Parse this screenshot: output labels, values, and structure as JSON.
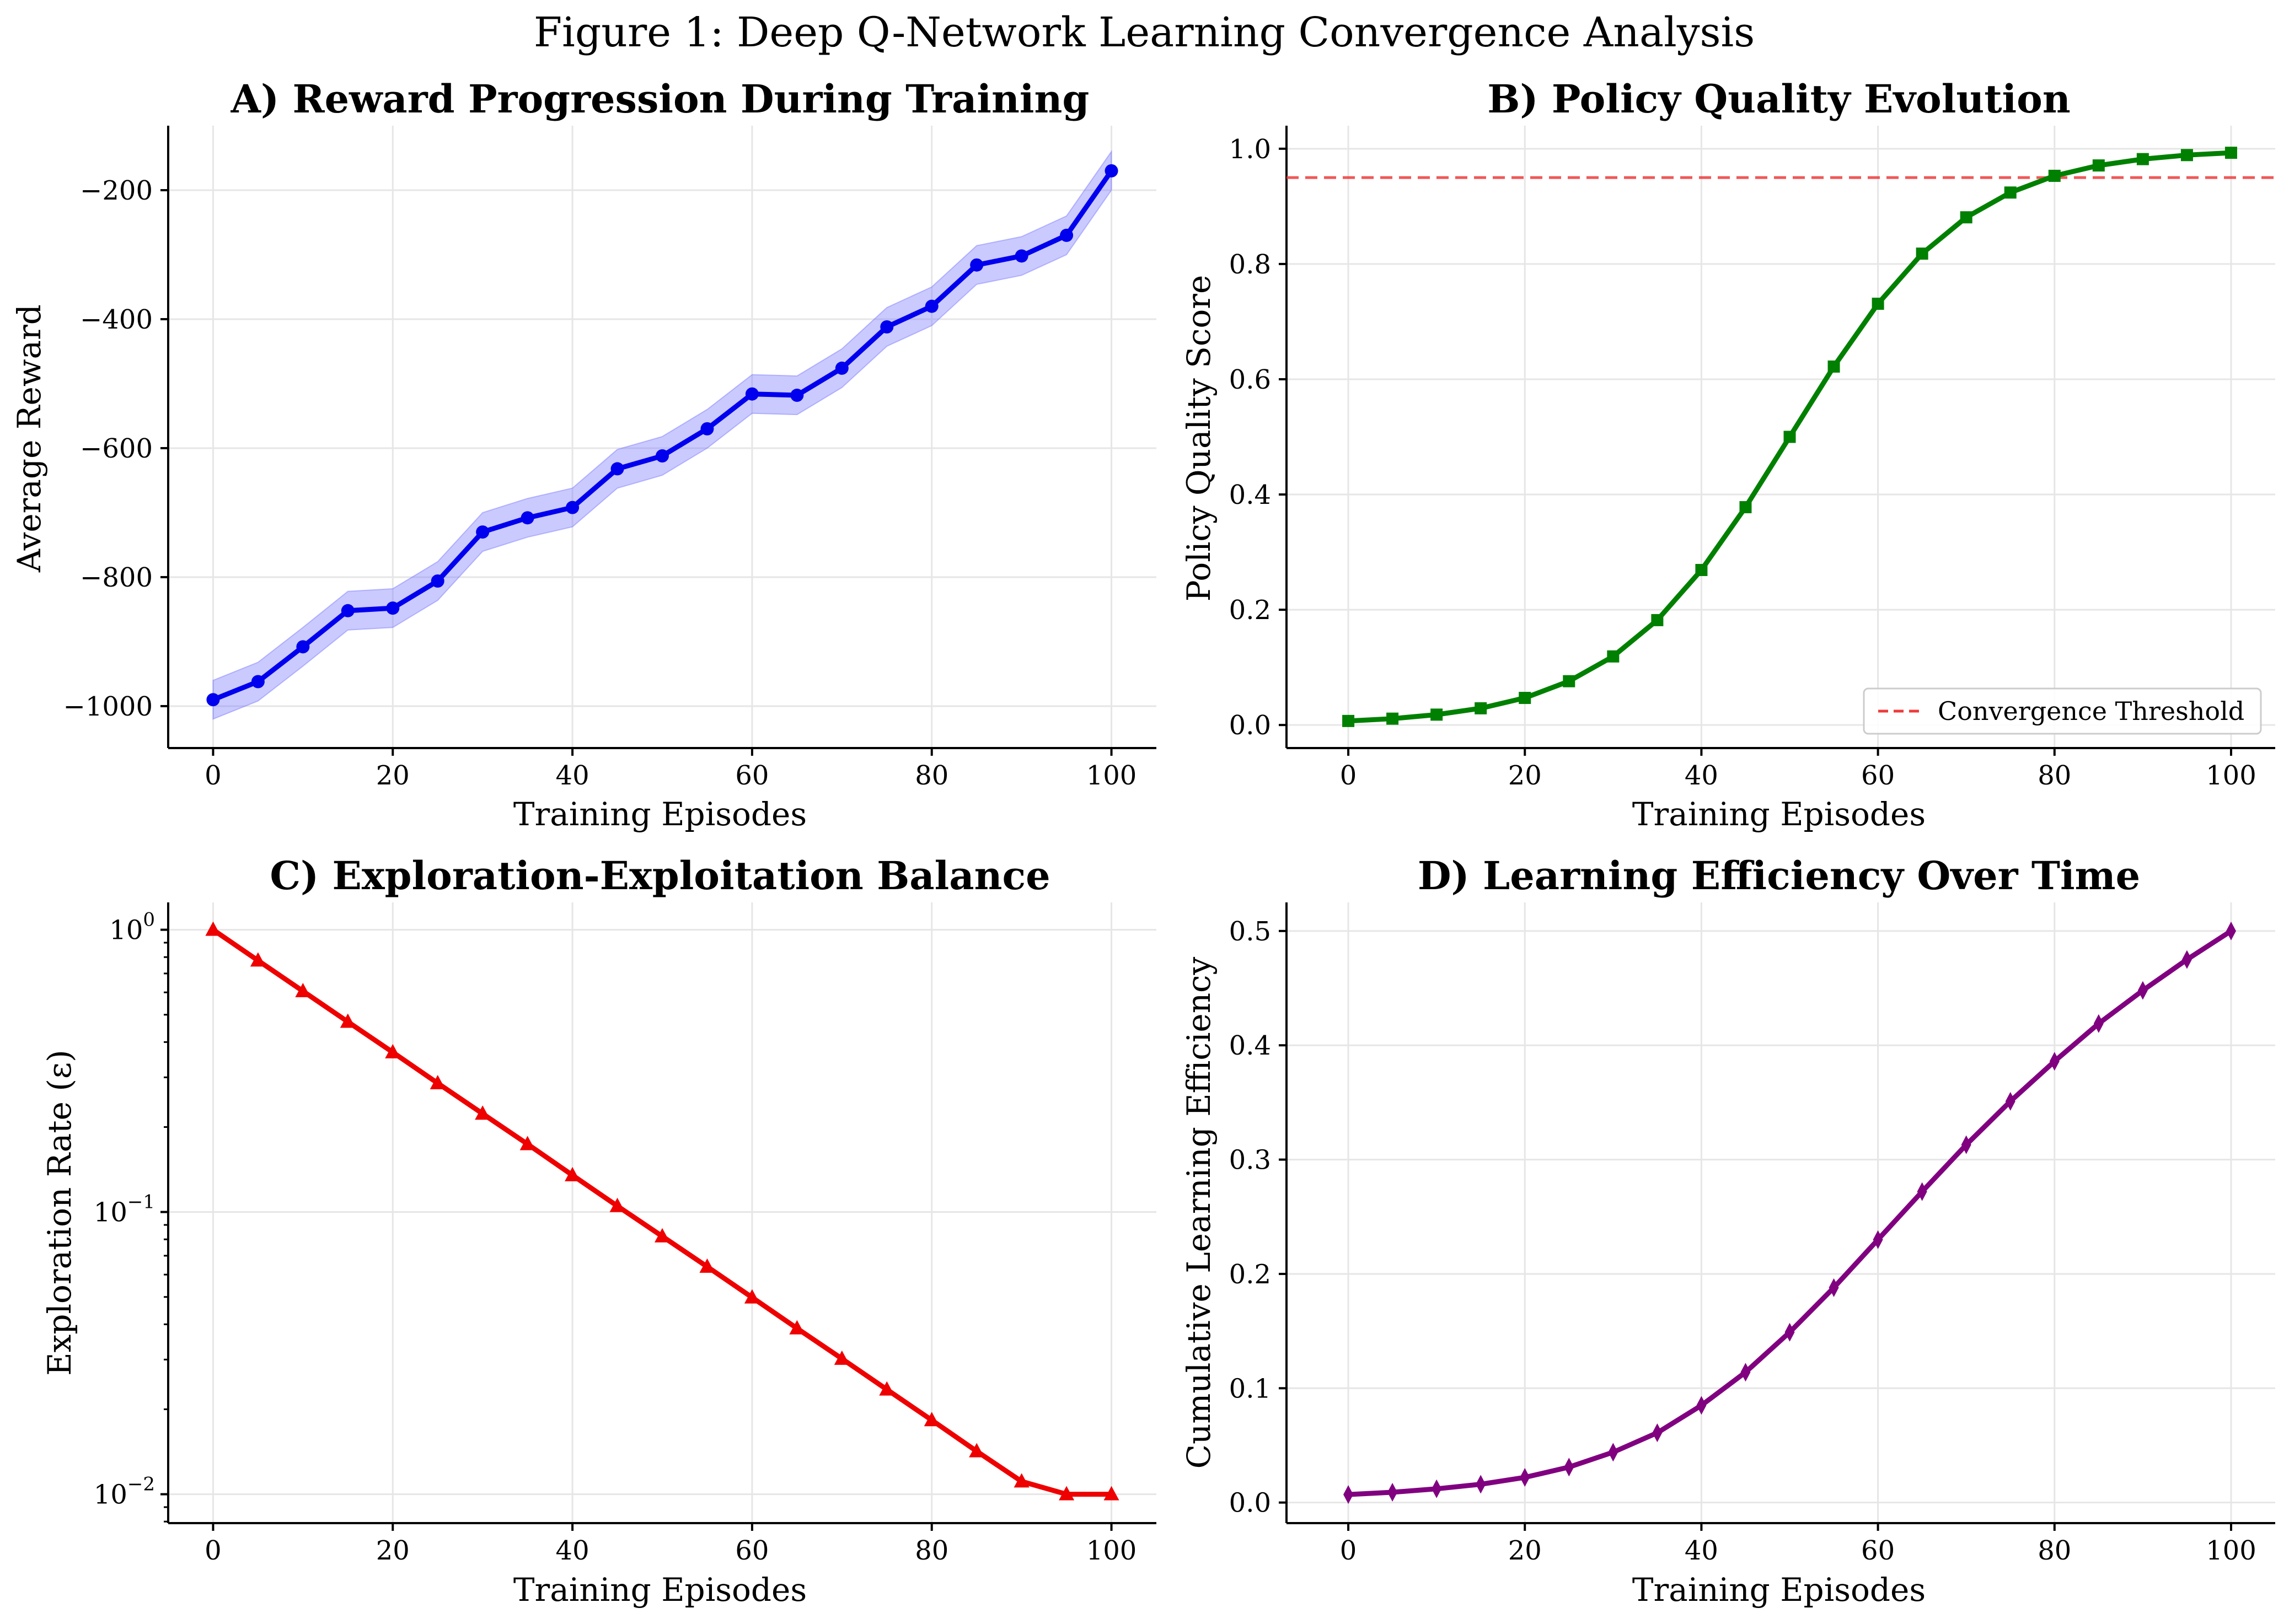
{
  "figure_title": "Figure 1: Deep Q-Network Learning Convergence Analysis",
  "chart_data": [
    {
      "id": "A",
      "type": "line",
      "title": "A) Reward Progression During Training",
      "xlabel": "Training Episodes",
      "ylabel": "Average Reward",
      "xlim": [
        -5,
        105
      ],
      "ylim": [
        -1065,
        -100
      ],
      "xticks": [
        0,
        20,
        40,
        60,
        80,
        100
      ],
      "yticks": [
        -1000,
        -800,
        -600,
        -400,
        -200
      ],
      "ytick_labels": [
        "−1000",
        "−800",
        "−600",
        "−400",
        "−200"
      ],
      "grid": true,
      "color": "#0000ee",
      "band_color": "#6666ff",
      "marker": "circle",
      "series": [
        {
          "x": [
            0,
            5,
            10,
            15,
            20,
            25,
            30,
            35,
            40,
            45,
            50,
            55,
            60,
            65,
            70,
            75,
            80,
            85,
            90,
            95,
            100
          ],
          "y": [
            -990,
            -962,
            -908,
            -852,
            -848,
            -806,
            -730,
            -708,
            -692,
            -632,
            -612,
            -570,
            -516,
            -518,
            -476,
            -412,
            -380,
            -316,
            -302,
            -270,
            -170
          ],
          "band_lower": [
            -1020,
            -992,
            -938,
            -882,
            -878,
            -836,
            -760,
            -738,
            -722,
            -662,
            -642,
            -600,
            -546,
            -548,
            -506,
            -442,
            -410,
            -346,
            -332,
            -300,
            -200
          ],
          "band_upper": [
            -960,
            -932,
            -878,
            -822,
            -818,
            -776,
            -700,
            -678,
            -662,
            -602,
            -582,
            -540,
            -486,
            -488,
            -446,
            -382,
            -350,
            -286,
            -272,
            -240,
            -140
          ]
        }
      ]
    },
    {
      "id": "B",
      "type": "line",
      "title": "B) Policy Quality Evolution",
      "xlabel": "Training Episodes",
      "ylabel": "Policy Quality Score",
      "xlim": [
        -7,
        105
      ],
      "ylim": [
        -0.04,
        1.04
      ],
      "xticks": [
        0,
        20,
        40,
        60,
        80,
        100
      ],
      "yticks": [
        0.0,
        0.2,
        0.4,
        0.6,
        0.8,
        1.0
      ],
      "ytick_labels": [
        "0.0",
        "0.2",
        "0.4",
        "0.6",
        "0.8",
        "1.0"
      ],
      "grid": true,
      "color": "#008000",
      "marker": "square",
      "series": [
        {
          "x": [
            0,
            5,
            10,
            15,
            20,
            25,
            30,
            35,
            40,
            45,
            50,
            55,
            60,
            65,
            70,
            75,
            80,
            85,
            90,
            95,
            100
          ],
          "y": [
            0.007,
            0.011,
            0.018,
            0.029,
            0.047,
            0.076,
            0.119,
            0.182,
            0.269,
            0.378,
            0.5,
            0.622,
            0.731,
            0.818,
            0.881,
            0.924,
            0.953,
            0.971,
            0.982,
            0.989,
            0.993
          ]
        }
      ],
      "threshold": {
        "y": 0.95,
        "label": "Convergence Threshold",
        "color": "#ee3b3b"
      },
      "legend": "lower-right"
    },
    {
      "id": "C",
      "type": "line",
      "title": "C) Exploration-Exploitation Balance",
      "xlabel": "Training Episodes",
      "ylabel": "Exploration Rate (ε)",
      "xlim": [
        -5,
        105
      ],
      "ylim": [
        0.0079,
        1.25
      ],
      "yscale": "log",
      "xticks": [
        0,
        20,
        40,
        60,
        80,
        100
      ],
      "yticks": [
        0.01,
        0.1,
        1.0
      ],
      "ytick_labels": [
        {
          "base": "10",
          "exp": "−2"
        },
        {
          "base": "10",
          "exp": "−1"
        },
        {
          "base": "10",
          "exp": "0"
        }
      ],
      "grid": true,
      "color": "#ee0000",
      "marker": "triangle",
      "series": [
        {
          "x": [
            0,
            5,
            10,
            15,
            20,
            25,
            30,
            35,
            40,
            45,
            50,
            55,
            60,
            65,
            70,
            75,
            80,
            85,
            90,
            95,
            100
          ],
          "y": [
            1.0,
            0.778,
            0.606,
            0.472,
            0.368,
            0.286,
            0.223,
            0.174,
            0.135,
            0.105,
            0.082,
            0.064,
            0.0498,
            0.0387,
            0.0302,
            0.0235,
            0.0183,
            0.0142,
            0.0111,
            0.01,
            0.01
          ]
        }
      ]
    },
    {
      "id": "D",
      "type": "line",
      "title": "D) Learning Efficiency Over Time",
      "xlabel": "Training Episodes",
      "ylabel": "Cumulative Learning Efficiency",
      "xlim": [
        -7,
        105
      ],
      "ylim": [
        -0.018,
        0.525
      ],
      "xticks": [
        0,
        20,
        40,
        60,
        80,
        100
      ],
      "yticks": [
        0.0,
        0.1,
        0.2,
        0.3,
        0.4,
        0.5
      ],
      "ytick_labels": [
        "0.0",
        "0.1",
        "0.2",
        "0.3",
        "0.4",
        "0.5"
      ],
      "grid": true,
      "color": "#800080",
      "marker": "diamond",
      "series": [
        {
          "x": [
            0,
            5,
            10,
            15,
            20,
            25,
            30,
            35,
            40,
            45,
            50,
            55,
            60,
            65,
            70,
            75,
            80,
            85,
            90,
            95,
            100
          ],
          "y": [
            0.007,
            0.009,
            0.012,
            0.016,
            0.022,
            0.031,
            0.044,
            0.061,
            0.085,
            0.114,
            0.149,
            0.188,
            0.23,
            0.272,
            0.313,
            0.351,
            0.386,
            0.419,
            0.448,
            0.475,
            0.5
          ]
        }
      ]
    }
  ]
}
